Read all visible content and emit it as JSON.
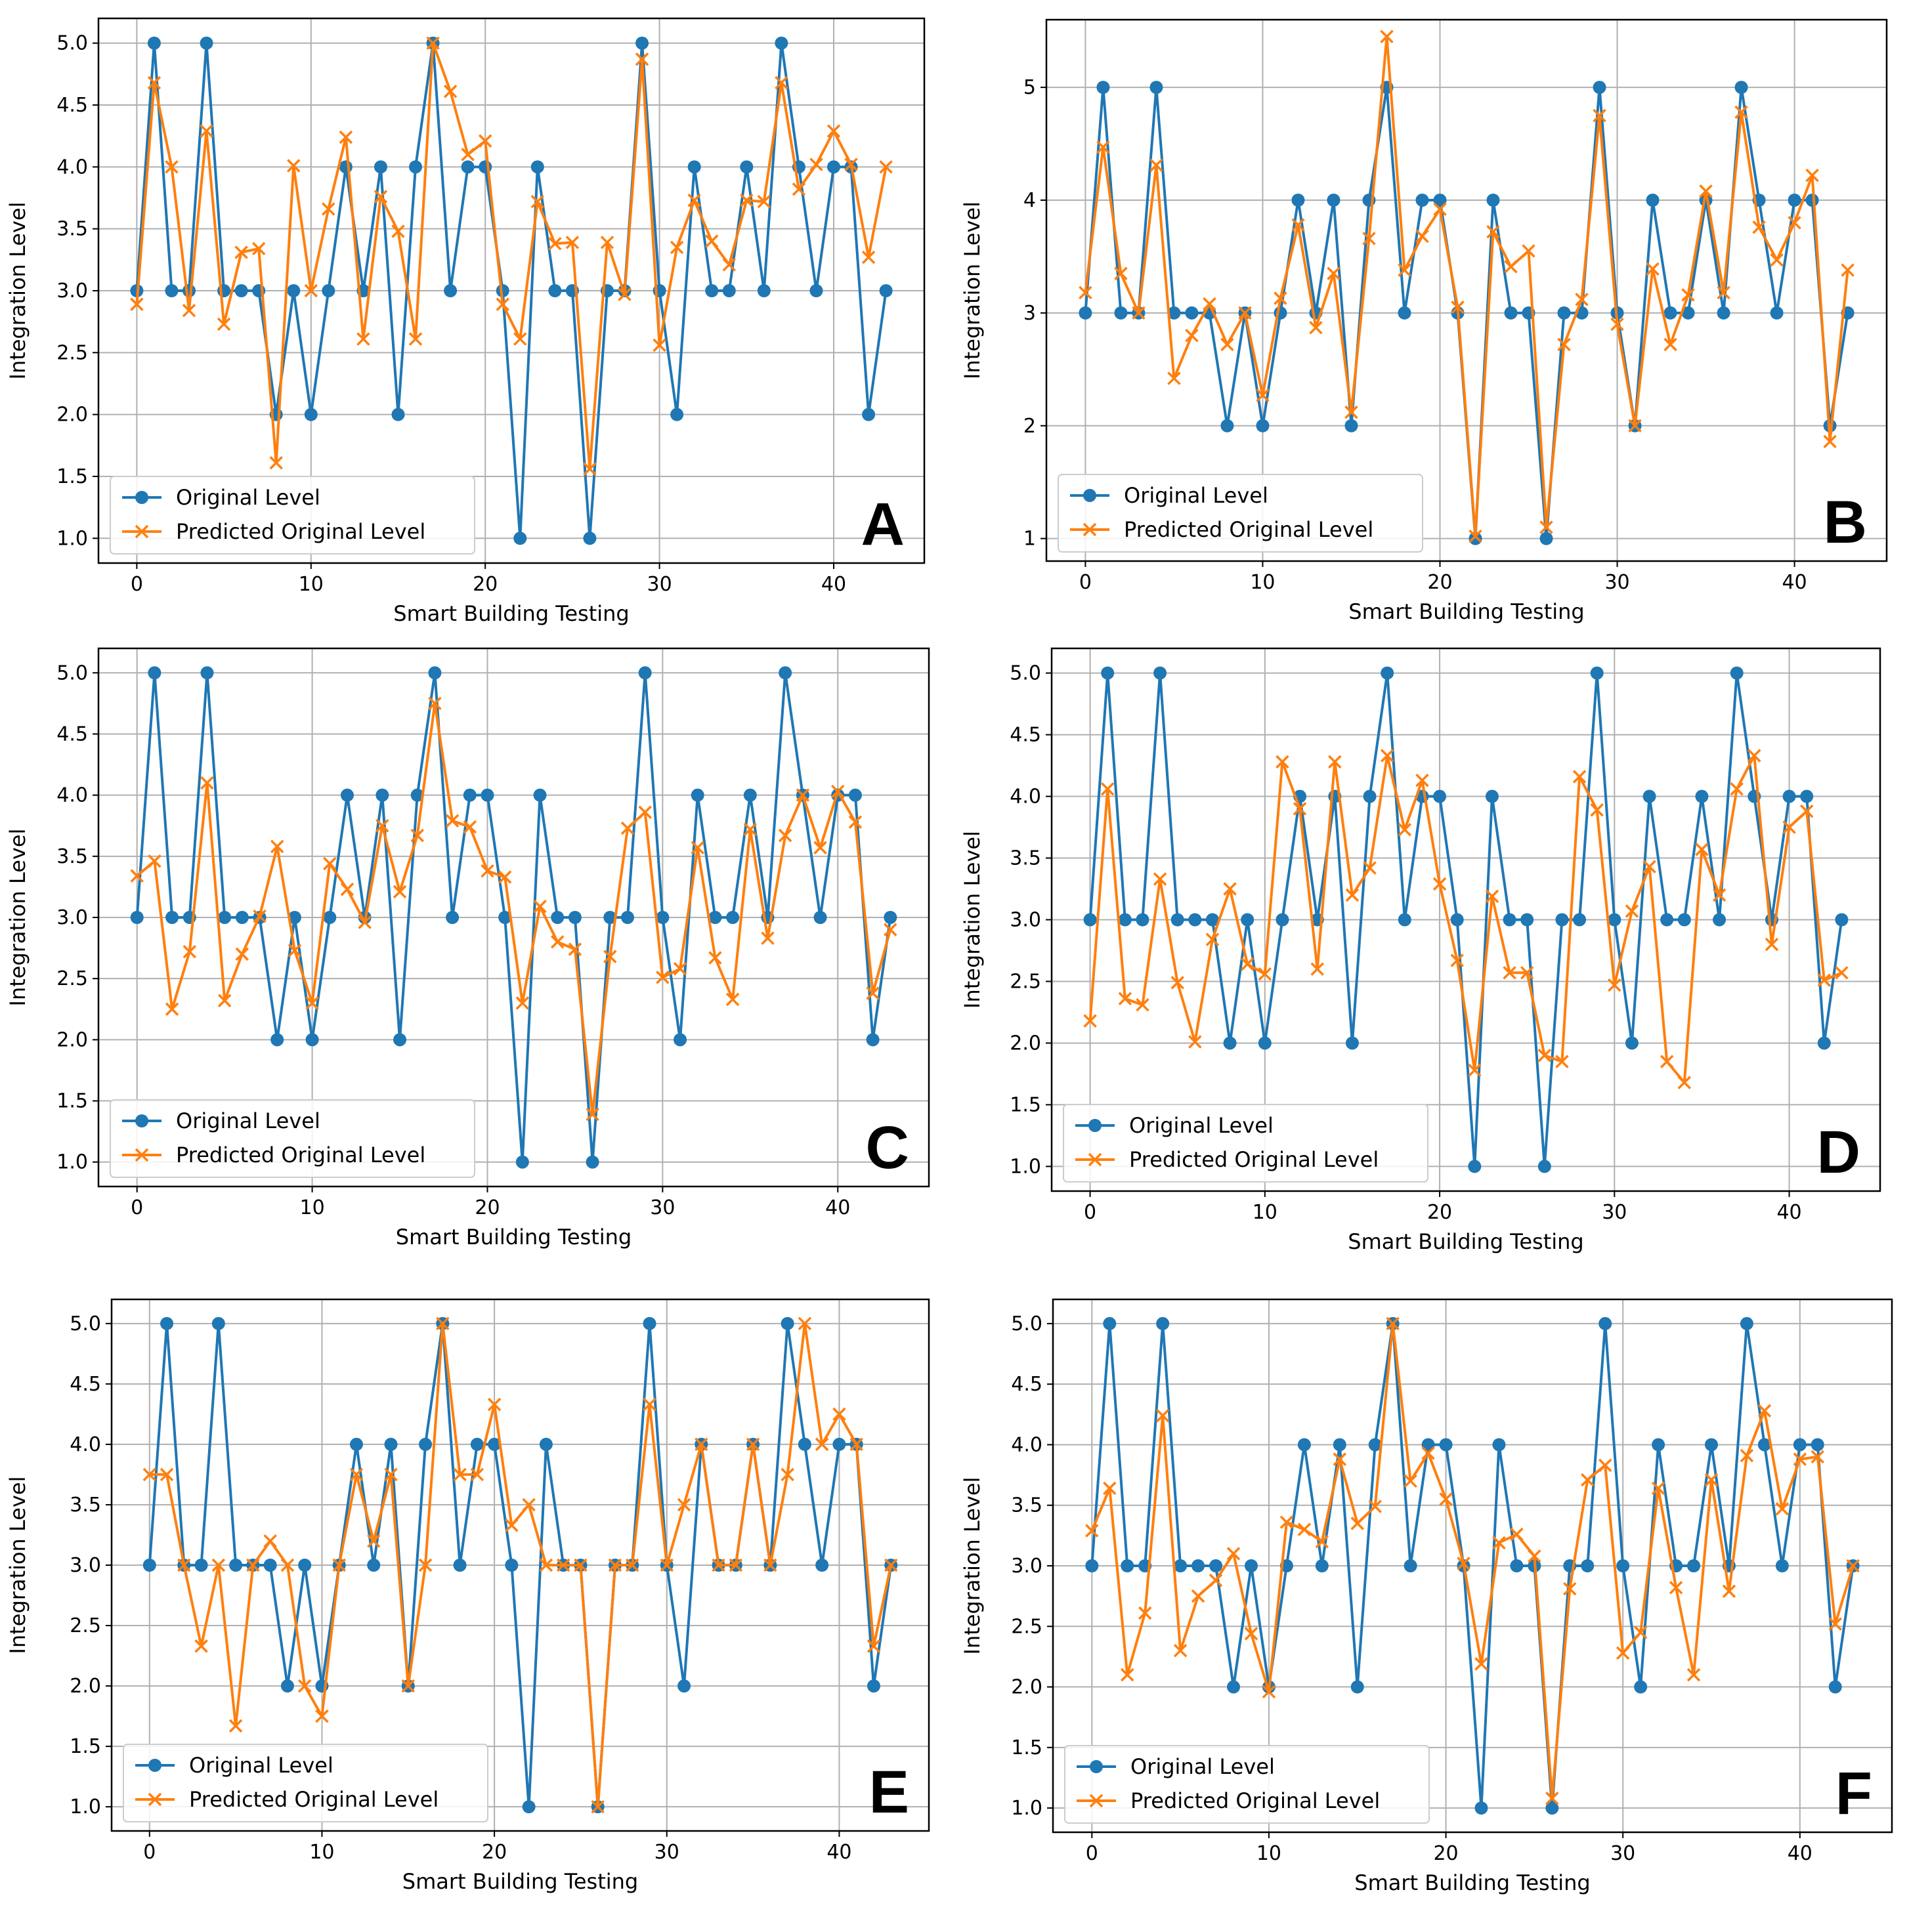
{
  "figure": {
    "colors": {
      "original": "#1f77b4",
      "predicted": "#ff7f0e",
      "grid": "#b0b0b0"
    },
    "legend_labels": [
      "Original Level",
      "Predicted Original Level"
    ],
    "xlabel": "Smart Building Testing",
    "ylabel": "Integration Level"
  },
  "chart_data": [
    {
      "type": "line",
      "panel_label": "A",
      "xlabel": "Smart Building Testing",
      "ylabel": "Integration Level",
      "xlim": [
        -2.2,
        45.2
      ],
      "ylim": [
        0.8,
        5.2
      ],
      "xticks": [
        0,
        10,
        20,
        30,
        40
      ],
      "yticks": [
        1.0,
        1.5,
        2.0,
        2.5,
        3.0,
        3.5,
        4.0,
        4.5,
        5.0
      ],
      "ytick_labels": [
        "1.0",
        "1.5",
        "2.0",
        "2.5",
        "3.0",
        "3.5",
        "4.0",
        "4.5",
        "5.0"
      ],
      "grid": true,
      "legend_position": "lower-left",
      "series": [
        {
          "name": "Original Level",
          "marker": "circle",
          "values": [
            3,
            5,
            3,
            3,
            5,
            3,
            3,
            3,
            2,
            3,
            2,
            3,
            4,
            3,
            4,
            2,
            4,
            5,
            3,
            4,
            4,
            3,
            1,
            4,
            3,
            3,
            1,
            3,
            3,
            5,
            3,
            2,
            4,
            3,
            3,
            4,
            3,
            5,
            4,
            3,
            4,
            4,
            2,
            3
          ]
        },
        {
          "name": "Predicted Original Level",
          "marker": "x",
          "values": [
            2.89,
            4.68,
            4.0,
            2.84,
            4.29,
            2.73,
            3.31,
            3.34,
            1.61,
            4.01,
            3.0,
            3.66,
            4.24,
            2.61,
            3.76,
            3.48,
            2.61,
            5.0,
            4.61,
            4.1,
            4.21,
            2.89,
            2.61,
            3.72,
            3.38,
            3.39,
            1.56,
            3.39,
            2.97,
            4.87,
            2.56,
            3.35,
            3.73,
            3.4,
            3.21,
            3.73,
            3.72,
            4.68,
            3.82,
            4.02,
            4.29,
            4.02,
            3.27,
            4.0
          ]
        }
      ]
    },
    {
      "type": "line",
      "panel_label": "B",
      "xlabel": "Smart Building Testing",
      "ylabel": "Integration Level",
      "xlim": [
        -2.2,
        45.2
      ],
      "ylim": [
        0.8,
        5.6
      ],
      "xticks": [
        0,
        10,
        20,
        30,
        40
      ],
      "yticks": [
        1,
        2,
        3,
        4,
        5
      ],
      "ytick_labels": [
        "1",
        "2",
        "3",
        "4",
        "5"
      ],
      "grid": true,
      "legend_position": "lower-left",
      "series": [
        {
          "name": "Original Level",
          "marker": "circle",
          "values": [
            3,
            5,
            3,
            3,
            5,
            3,
            3,
            3,
            2,
            3,
            2,
            3,
            4,
            3,
            4,
            2,
            4,
            5,
            3,
            4,
            4,
            3,
            1,
            4,
            3,
            3,
            1,
            3,
            3,
            5,
            3,
            2,
            4,
            3,
            3,
            4,
            3,
            5,
            4,
            3,
            4,
            4,
            2,
            3
          ]
        },
        {
          "name": "Predicted Original Level",
          "marker": "x",
          "values": [
            3.18,
            4.47,
            3.35,
            3.0,
            4.31,
            2.42,
            2.8,
            3.08,
            2.72,
            3.0,
            2.27,
            3.13,
            3.78,
            2.87,
            3.35,
            2.12,
            3.66,
            5.45,
            3.38,
            3.68,
            3.92,
            3.05,
            1.02,
            3.72,
            3.41,
            3.55,
            1.1,
            2.72,
            3.12,
            4.75,
            2.9,
            2.0,
            3.39,
            2.72,
            3.16,
            4.08,
            3.18,
            4.78,
            3.76,
            3.47,
            3.8,
            4.22,
            1.86,
            3.38
          ]
        }
      ]
    },
    {
      "type": "line",
      "panel_label": "C",
      "xlabel": "Smart Building Testing",
      "ylabel": "Integration Level",
      "xlim": [
        -2.2,
        45.2
      ],
      "ylim": [
        0.8,
        5.2
      ],
      "xticks": [
        0,
        10,
        20,
        30,
        40
      ],
      "yticks": [
        1.0,
        1.5,
        2.0,
        2.5,
        3.0,
        3.5,
        4.0,
        4.5,
        5.0
      ],
      "ytick_labels": [
        "1.0",
        "1.5",
        "2.0",
        "2.5",
        "3.0",
        "3.5",
        "4.0",
        "4.5",
        "5.0"
      ],
      "grid": true,
      "legend_position": "lower-left",
      "series": [
        {
          "name": "Original Level",
          "marker": "circle",
          "values": [
            3,
            5,
            3,
            3,
            5,
            3,
            3,
            3,
            2,
            3,
            2,
            3,
            4,
            3,
            4,
            2,
            4,
            5,
            3,
            4,
            4,
            3,
            1,
            4,
            3,
            3,
            1,
            3,
            3,
            5,
            3,
            2,
            4,
            3,
            3,
            4,
            3,
            5,
            4,
            3,
            4,
            4,
            2,
            3
          ]
        },
        {
          "name": "Predicted Original Level",
          "marker": "x",
          "values": [
            3.34,
            3.46,
            2.25,
            2.72,
            4.1,
            2.32,
            2.7,
            3.01,
            3.58,
            2.73,
            2.3,
            3.44,
            3.23,
            2.96,
            3.75,
            3.21,
            3.67,
            4.75,
            3.79,
            3.74,
            3.38,
            3.33,
            2.3,
            3.09,
            2.8,
            2.74,
            1.39,
            2.68,
            3.73,
            3.86,
            2.51,
            2.58,
            3.57,
            2.67,
            2.33,
            3.72,
            2.83,
            3.67,
            4.0,
            3.57,
            4.03,
            3.78,
            2.38,
            2.9
          ]
        }
      ]
    },
    {
      "type": "line",
      "panel_label": "D",
      "xlabel": "Smart Building Testing",
      "ylabel": "Integration Level",
      "xlim": [
        -2.2,
        45.2
      ],
      "ylim": [
        0.8,
        5.2
      ],
      "xticks": [
        0,
        10,
        20,
        30,
        40
      ],
      "yticks": [
        1.0,
        1.5,
        2.0,
        2.5,
        3.0,
        3.5,
        4.0,
        4.5,
        5.0
      ],
      "ytick_labels": [
        "1.0",
        "1.5",
        "2.0",
        "2.5",
        "3.0",
        "3.5",
        "4.0",
        "4.5",
        "5.0"
      ],
      "grid": true,
      "legend_position": "lower-left",
      "series": [
        {
          "name": "Original Level",
          "marker": "circle",
          "values": [
            3,
            5,
            3,
            3,
            5,
            3,
            3,
            3,
            2,
            3,
            2,
            3,
            4,
            3,
            4,
            2,
            4,
            5,
            3,
            4,
            4,
            3,
            1,
            4,
            3,
            3,
            1,
            3,
            3,
            5,
            3,
            2,
            4,
            3,
            3,
            4,
            3,
            5,
            4,
            3,
            4,
            4,
            2,
            3
          ]
        },
        {
          "name": "Predicted Original Level",
          "marker": "x",
          "values": [
            2.18,
            4.06,
            2.36,
            2.31,
            3.33,
            2.49,
            2.01,
            2.84,
            3.25,
            2.64,
            2.56,
            4.28,
            3.9,
            2.6,
            4.28,
            3.2,
            3.42,
            4.33,
            3.73,
            4.13,
            3.29,
            2.67,
            1.78,
            3.19,
            2.57,
            2.57,
            1.9,
            1.85,
            4.16,
            3.89,
            2.47,
            3.07,
            3.43,
            1.85,
            1.68,
            3.57,
            3.2,
            4.06,
            4.33,
            2.8,
            3.75,
            3.88,
            2.51,
            2.57
          ]
        }
      ]
    },
    {
      "type": "line",
      "panel_label": "E",
      "xlabel": "Smart Building Testing",
      "ylabel": "Integration Level",
      "xlim": [
        -2.2,
        45.2
      ],
      "ylim": [
        0.8,
        5.2
      ],
      "xticks": [
        0,
        10,
        20,
        30,
        40
      ],
      "yticks": [
        1.0,
        1.5,
        2.0,
        2.5,
        3.0,
        3.5,
        4.0,
        4.5,
        5.0
      ],
      "ytick_labels": [
        "1.0",
        "1.5",
        "2.0",
        "2.5",
        "3.0",
        "3.5",
        "4.0",
        "4.5",
        "5.0"
      ],
      "grid": true,
      "legend_position": "lower-left",
      "series": [
        {
          "name": "Original Level",
          "marker": "circle",
          "values": [
            3,
            5,
            3,
            3,
            5,
            3,
            3,
            3,
            2,
            3,
            2,
            3,
            4,
            3,
            4,
            2,
            4,
            5,
            3,
            4,
            4,
            3,
            1,
            4,
            3,
            3,
            1,
            3,
            3,
            5,
            3,
            2,
            4,
            3,
            3,
            4,
            3,
            5,
            4,
            3,
            4,
            4,
            2,
            3
          ]
        },
        {
          "name": "Predicted Original Level",
          "marker": "x",
          "values": [
            3.75,
            3.75,
            3.0,
            2.33,
            3.0,
            1.67,
            3.0,
            3.2,
            3.0,
            2.0,
            1.75,
            3.0,
            3.75,
            3.2,
            3.75,
            2.0,
            3.0,
            5.0,
            3.75,
            3.75,
            4.33,
            3.33,
            3.5,
            3.0,
            3.0,
            3.0,
            1.0,
            3.0,
            3.0,
            4.33,
            3.0,
            3.5,
            4.0,
            3.0,
            3.0,
            4.0,
            3.0,
            3.75,
            5.0,
            4.0,
            4.25,
            4.0,
            2.33,
            3.0
          ]
        }
      ]
    },
    {
      "type": "line",
      "panel_label": "F",
      "xlabel": "Smart Building Testing",
      "ylabel": "Integration Level",
      "xlim": [
        -2.2,
        45.2
      ],
      "ylim": [
        0.8,
        5.2
      ],
      "xticks": [
        0,
        10,
        20,
        30,
        40
      ],
      "yticks": [
        1.0,
        1.5,
        2.0,
        2.5,
        3.0,
        3.5,
        4.0,
        4.5,
        5.0
      ],
      "ytick_labels": [
        "1.0",
        "1.5",
        "2.0",
        "2.5",
        "3.0",
        "3.5",
        "4.0",
        "4.5",
        "5.0"
      ],
      "grid": true,
      "legend_position": "lower-left",
      "series": [
        {
          "name": "Original Level",
          "marker": "circle",
          "values": [
            3,
            5,
            3,
            3,
            5,
            3,
            3,
            3,
            2,
            3,
            2,
            3,
            4,
            3,
            4,
            2,
            4,
            5,
            3,
            4,
            4,
            3,
            1,
            4,
            3,
            3,
            1,
            3,
            3,
            5,
            3,
            2,
            4,
            3,
            3,
            4,
            3,
            5,
            4,
            3,
            4,
            4,
            2,
            3
          ]
        },
        {
          "name": "Predicted Original Level",
          "marker": "x",
          "values": [
            3.29,
            3.64,
            2.1,
            2.61,
            4.24,
            2.3,
            2.75,
            2.88,
            3.1,
            2.44,
            1.96,
            3.36,
            3.3,
            3.2,
            3.88,
            3.35,
            3.49,
            5.0,
            3.7,
            3.93,
            3.55,
            3.02,
            2.19,
            3.19,
            3.26,
            3.08,
            1.08,
            2.81,
            3.71,
            3.83,
            2.28,
            2.45,
            3.64,
            2.82,
            2.1,
            3.71,
            2.79,
            3.91,
            4.28,
            3.47,
            3.88,
            3.9,
            2.52,
            3.0
          ]
        }
      ]
    }
  ]
}
